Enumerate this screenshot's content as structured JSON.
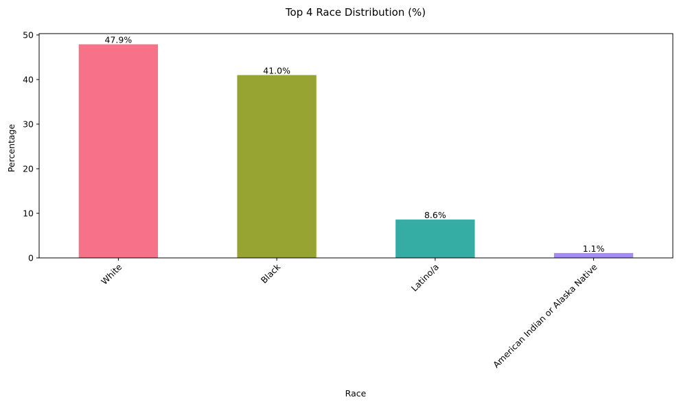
{
  "chart_data": {
    "type": "bar",
    "title": "Top 4 Race Distribution (%)",
    "xlabel": "Race",
    "ylabel": "Percentage",
    "categories": [
      "White",
      "Black",
      "Latino/a",
      "American Indian or Alaska Native"
    ],
    "values": [
      47.9,
      41.0,
      8.6,
      1.1
    ],
    "value_labels": [
      "47.9%",
      "41.0%",
      "8.6%",
      "1.1%"
    ],
    "colors": [
      "#f77189",
      "#97a431",
      "#36ada4",
      "#a48cf4"
    ],
    "ylim": [
      0,
      50.3
    ],
    "yticks": [
      0,
      10,
      20,
      30,
      40,
      50
    ],
    "ytick_labels": [
      "0",
      "10",
      "20",
      "30",
      "40",
      "50"
    ],
    "xtick_rotation": 45,
    "grid": false,
    "legend": "none"
  }
}
